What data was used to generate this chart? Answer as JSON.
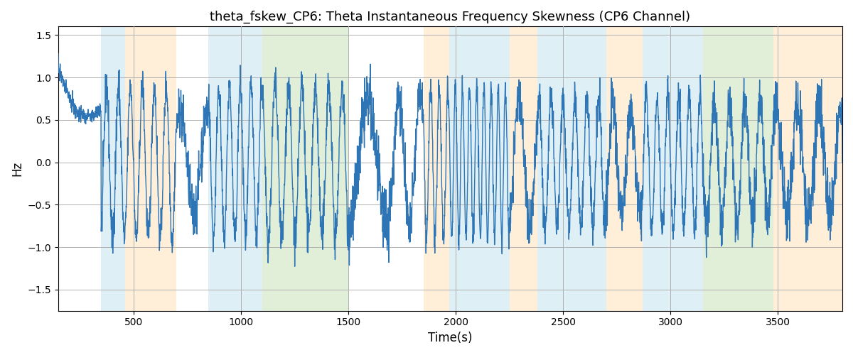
{
  "title": "theta_fskew_CP6: Theta Instantaneous Frequency Skewness (CP6 Channel)",
  "xlabel": "Time(s)",
  "ylabel": "Hz",
  "xlim": [
    150,
    3800
  ],
  "ylim": [
    -1.75,
    1.6
  ],
  "yticks": [
    -1.5,
    -1.0,
    -0.5,
    0.0,
    0.5,
    1.0,
    1.5
  ],
  "xticks": [
    500,
    1000,
    1500,
    2000,
    2500,
    3000,
    3500
  ],
  "line_color": "#2e75b6",
  "line_width": 1.0,
  "bg_color": "#ffffff",
  "grid_color": "#b0b0b0",
  "bands": [
    {
      "start": 350,
      "end": 460,
      "color": "#add8e6",
      "alpha": 0.4
    },
    {
      "start": 460,
      "end": 700,
      "color": "#ffd9a0",
      "alpha": 0.4
    },
    {
      "start": 850,
      "end": 1100,
      "color": "#add8e6",
      "alpha": 0.4
    },
    {
      "start": 1100,
      "end": 1500,
      "color": "#b5d8a0",
      "alpha": 0.4
    },
    {
      "start": 1850,
      "end": 1970,
      "color": "#ffd9a0",
      "alpha": 0.4
    },
    {
      "start": 1970,
      "end": 2250,
      "color": "#add8e6",
      "alpha": 0.4
    },
    {
      "start": 2250,
      "end": 2380,
      "color": "#ffd9a0",
      "alpha": 0.4
    },
    {
      "start": 2380,
      "end": 2700,
      "color": "#add8e6",
      "alpha": 0.4
    },
    {
      "start": 2700,
      "end": 2870,
      "color": "#ffd9a0",
      "alpha": 0.4
    },
    {
      "start": 2870,
      "end": 3150,
      "color": "#add8e6",
      "alpha": 0.4
    },
    {
      "start": 3150,
      "end": 3480,
      "color": "#b5d8a0",
      "alpha": 0.4
    },
    {
      "start": 3480,
      "end": 3800,
      "color": "#ffd9a0",
      "alpha": 0.4
    }
  ],
  "seed": 42,
  "t_start": 150,
  "t_end": 3800,
  "n_points": 3651
}
